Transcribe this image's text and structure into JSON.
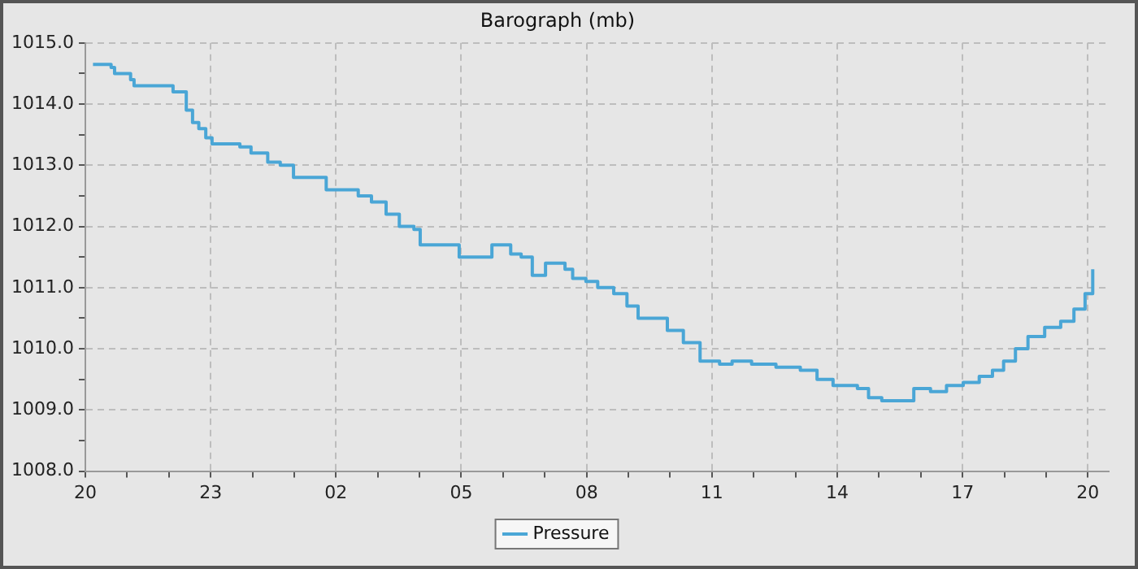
{
  "chart_data": {
    "type": "step",
    "title": "Barograph (mb)",
    "x": [
      "--01-01T20:11",
      "--01-01T20:37",
      "--01-01T20:42",
      "--01-01T21:05",
      "--01-01T21:10",
      "--01-01T21:57",
      "--01-01T22:06",
      "--01-01T22:25",
      "--01-01T22:34",
      "--01-01T22:43",
      "--01-01T22:53",
      "--01-01T23:02",
      "--01-01T23:30",
      "--01-01T23:42",
      "--01-01T23:58",
      "--01-02T00:22",
      "--01-02T00:40",
      "--01-02T00:59",
      "--01-02T01:32",
      "--01-02T01:46",
      "--01-02T02:14",
      "--01-02T02:32",
      "--01-02T02:51",
      "--01-02T03:12",
      "--01-02T03:31",
      "--01-02T03:52",
      "--01-02T04:01",
      "--01-02T04:38",
      "--01-02T04:57",
      "--01-02T05:32",
      "--01-02T05:44",
      "--01-02T05:55",
      "--01-02T06:11",
      "--01-02T06:26",
      "--01-02T06:42",
      "--01-02T07:01",
      "--01-02T07:17",
      "--01-02T07:29",
      "--01-02T07:40",
      "--01-02T07:59",
      "--01-02T08:16",
      "--01-02T08:39",
      "--01-02T08:58",
      "--01-02T09:14",
      "--01-02T09:37",
      "--01-02T09:56",
      "--01-02T10:19",
      "--01-02T10:43",
      "--01-02T11:11",
      "--01-02T11:29",
      "--01-02T11:57",
      "--01-02T12:32",
      "--01-02T13:07",
      "--01-02T13:31",
      "--01-02T13:54",
      "--01-02T14:29",
      "--01-02T14:45",
      "--01-02T15:04",
      "--01-02T15:28",
      "--01-02T15:50",
      "--01-02T16:14",
      "--01-02T16:37",
      "--01-02T17:01",
      "--01-02T17:24",
      "--01-02T17:43",
      "--01-02T17:59",
      "--01-02T18:16",
      "--01-02T18:34",
      "--01-02T18:58",
      "--01-02T19:21",
      "--01-02T19:40",
      "--01-02T19:56",
      "--01-02T20:07"
    ],
    "series": [
      {
        "name": "Pressure",
        "color": "#4aa6d6",
        "values": [
          1014.65,
          1014.6,
          1014.5,
          1014.4,
          1014.3,
          1014.3,
          1014.2,
          1013.9,
          1013.7,
          1013.6,
          1013.45,
          1013.35,
          1013.35,
          1013.3,
          1013.2,
          1013.05,
          1013.0,
          1012.8,
          1012.8,
          1012.6,
          1012.6,
          1012.5,
          1012.4,
          1012.2,
          1012.0,
          1011.95,
          1011.7,
          1011.7,
          1011.5,
          1011.5,
          1011.7,
          1011.7,
          1011.55,
          1011.5,
          1011.2,
          1011.4,
          1011.4,
          1011.3,
          1011.15,
          1011.1,
          1011.0,
          1010.9,
          1010.7,
          1010.5,
          1010.5,
          1010.3,
          1010.1,
          1009.8,
          1009.75,
          1009.8,
          1009.75,
          1009.7,
          1009.65,
          1009.5,
          1009.4,
          1009.35,
          1009.2,
          1009.15,
          1009.15,
          1009.35,
          1009.3,
          1009.4,
          1009.45,
          1009.55,
          1009.65,
          1009.8,
          1010.0,
          1010.2,
          1010.35,
          1010.45,
          1010.65,
          1010.9,
          1011.3
        ]
      }
    ],
    "xlim": [
      "--01-01T20:00",
      "--01-02T20:30"
    ],
    "xticks": [
      {
        "value": "--01-01T20:00",
        "label": "20"
      },
      {
        "value": "--01-01T21:00",
        "label": null
      },
      {
        "value": "--01-01T22:00",
        "label": null
      },
      {
        "value": "--01-01T23:00",
        "label": "23"
      },
      {
        "value": "--01-02T00:00",
        "label": null
      },
      {
        "value": "--01-02T01:00",
        "label": null
      },
      {
        "value": "--01-02T02:00",
        "label": "02"
      },
      {
        "value": "--01-02T03:00",
        "label": null
      },
      {
        "value": "--01-02T04:00",
        "label": null
      },
      {
        "value": "--01-02T05:00",
        "label": "05"
      },
      {
        "value": "--01-02T06:00",
        "label": null
      },
      {
        "value": "--01-02T07:00",
        "label": null
      },
      {
        "value": "--01-02T08:00",
        "label": "08"
      },
      {
        "value": "--01-02T09:00",
        "label": null
      },
      {
        "value": "--01-02T10:00",
        "label": null
      },
      {
        "value": "--01-02T11:00",
        "label": "11"
      },
      {
        "value": "--01-02T12:00",
        "label": null
      },
      {
        "value": "--01-02T13:00",
        "label": null
      },
      {
        "value": "--01-02T14:00",
        "label": "14"
      },
      {
        "value": "--01-02T15:00",
        "label": null
      },
      {
        "value": "--01-02T16:00",
        "label": null
      },
      {
        "value": "--01-02T17:00",
        "label": "17"
      },
      {
        "value": "--01-02T18:00",
        "label": null
      },
      {
        "value": "--01-02T19:00",
        "label": null
      },
      {
        "value": "--01-02T20:00",
        "label": "20"
      }
    ],
    "ylim": [
      1008,
      1015
    ],
    "yticks": [
      {
        "value": 1008,
        "label": "1008.0"
      },
      {
        "value": 1008.5,
        "label": null
      },
      {
        "value": 1009,
        "label": "1009.0"
      },
      {
        "value": 1009.5,
        "label": null
      },
      {
        "value": 1010,
        "label": "1010.0"
      },
      {
        "value": 1010.5,
        "label": null
      },
      {
        "value": 1011,
        "label": "1011.0"
      },
      {
        "value": 1011.5,
        "label": null
      },
      {
        "value": 1012,
        "label": "1012.0"
      },
      {
        "value": 1012.5,
        "label": null
      },
      {
        "value": 1013,
        "label": "1013.0"
      },
      {
        "value": 1013.5,
        "label": null
      },
      {
        "value": 1014,
        "label": "1014.0"
      },
      {
        "value": 1014.5,
        "label": null
      },
      {
        "value": 1015,
        "label": "1015.0"
      }
    ],
    "grid": true,
    "legend": "bottom",
    "line_style": "solid",
    "marker": "none"
  }
}
